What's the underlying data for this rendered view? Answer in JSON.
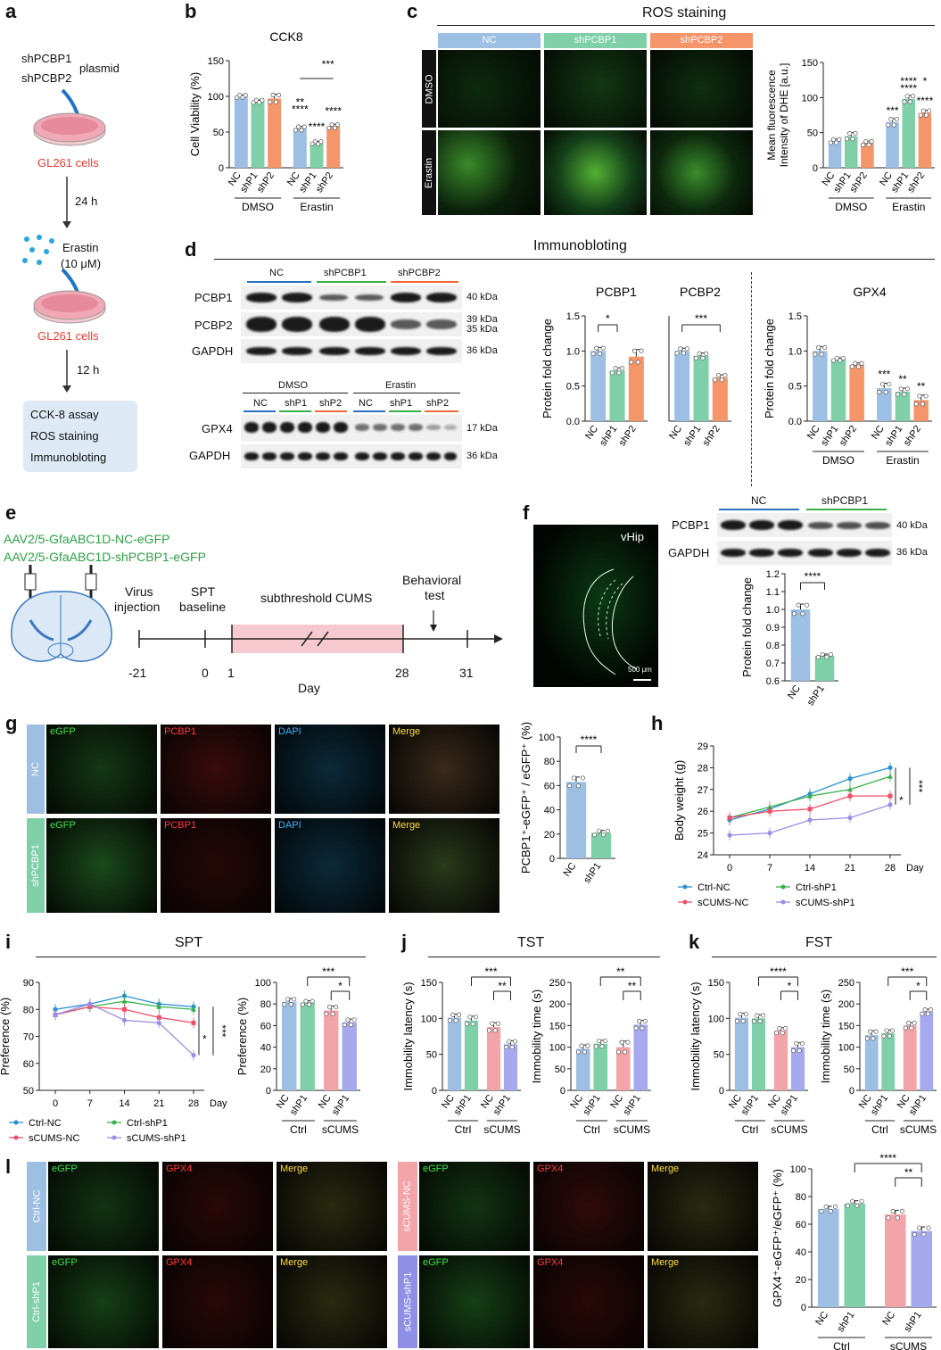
{
  "panels": {
    "a": "a",
    "b": "b",
    "c": "c",
    "d": "d",
    "e": "e",
    "f": "f",
    "g": "g",
    "h": "h",
    "i": "i",
    "j": "j",
    "k": "k",
    "l": "l"
  },
  "a": {
    "plasmid1": "shPCBP1",
    "plasmid2": "shPCBP2",
    "plasmid_label": "plasmid",
    "cells": "GL261 cells",
    "time1": "24 h",
    "drug": "Erastin",
    "dose": "(10 μM)",
    "time2": "12 h",
    "assays": [
      "CCK-8 assay",
      "ROS staining",
      "Immunobloting"
    ]
  },
  "b": {
    "title": "CCK8"
  },
  "c": {
    "title": "ROS staining",
    "cols": [
      "NC",
      "shPCBP1",
      "shPCBP2"
    ],
    "rows": [
      "DMSO",
      "Erastin"
    ]
  },
  "d": {
    "title": "Immunobloting",
    "groups": [
      "NC",
      "shPCBP1",
      "shPCBP2"
    ],
    "groups2": [
      "NC",
      "shP1",
      "shP2",
      "NC",
      "shP1",
      "shP2"
    ],
    "top_groups2": [
      "DMSO",
      "Erastin"
    ],
    "proteins": [
      "PCBP1",
      "PCBP2",
      "GAPDH",
      "GPX4",
      "GAPDH"
    ],
    "kda": [
      "40 kDa",
      "39 kDa",
      "35 kDa",
      "36 kDa",
      "17 kDa",
      "36 kDa"
    ]
  },
  "e": {
    "virus1": "AAV2/5-GfaABC1D-NC-eGFP",
    "virus2": "AAV2/5-GfaABC1D-shPCBP1-eGFP",
    "steps": [
      "Virus",
      "injection",
      "SPT",
      "baseline",
      "subthreshold CUMS",
      "Behavioral",
      "test"
    ],
    "days": [
      "-21",
      "0",
      "1",
      "28",
      "31"
    ],
    "axis": "Day"
  },
  "f": {
    "region": "vHip",
    "scalebar": "500 μm",
    "groups": [
      "NC",
      "shPCBP1"
    ],
    "proteins": [
      "PCBP1",
      "GAPDH"
    ],
    "kda": [
      "40 kDa",
      "36 kDa"
    ]
  },
  "g": {
    "cols": [
      "eGFP",
      "PCBP1",
      "DAPI",
      "Merge"
    ],
    "rows": [
      "NC",
      "shPCBP1"
    ]
  },
  "i": {
    "title": "SPT"
  },
  "j": {
    "title": "TST"
  },
  "k": {
    "title": "FST"
  },
  "l": {
    "cols": [
      "eGFP",
      "GPX4",
      "Merge"
    ],
    "rows_left": [
      "Ctrl-NC",
      "Ctrl-shP1"
    ],
    "rows_right": [
      "sCUMS-NC",
      "sCUMS-shP1"
    ]
  },
  "colors": {
    "nc": "#9dbfe3",
    "shp1": "#7fcfa8",
    "shp2": "#f4956a",
    "sc_nc": "#f3a4a9",
    "sc_shp1": "#a6a9ee",
    "ctrlnc_line": "#2a8fd0",
    "ctrlshp1_line": "#38b04a",
    "scnc_line": "#ef4f6a",
    "scshp1_line": "#9c8ce6"
  },
  "chart_data": [
    {
      "id": "b",
      "type": "bar",
      "title": "CCK8",
      "ylabel": "Cell Viability (%)",
      "ylim": [
        0,
        150
      ],
      "yticks": [
        0,
        50,
        100,
        150
      ],
      "categories": [
        "NC",
        "shP1",
        "shP2",
        "NC",
        "shP1",
        "shP2"
      ],
      "groups": [
        "DMSO",
        "Erastin"
      ],
      "values": [
        100,
        93,
        97,
        55,
        35,
        58
      ],
      "errors": [
        2,
        2,
        6,
        3,
        2,
        3
      ],
      "sig": [
        "**",
        "***",
        "****",
        "****",
        "****"
      ]
    },
    {
      "id": "c",
      "type": "bar",
      "ylabel": "Mean fluorescence Intensity of DHE [a.u.]",
      "ylim": [
        0,
        150
      ],
      "yticks": [
        0,
        50,
        100,
        150
      ],
      "categories": [
        "NC",
        "shP1",
        "shP2",
        "NC",
        "shP1",
        "shP2"
      ],
      "groups": [
        "DMSO",
        "Erastin"
      ],
      "values": [
        38,
        45,
        35,
        65,
        98,
        78
      ],
      "errors": [
        3,
        5,
        3,
        5,
        5,
        4
      ],
      "sig": [
        "****",
        "*",
        "***",
        "****",
        "****"
      ]
    },
    {
      "id": "d1",
      "type": "bar",
      "title": "PCBP1",
      "ylabel": "Protein fold change",
      "ylim": [
        0,
        1.5
      ],
      "yticks": [
        "0.0",
        "0.5",
        "1.0",
        "1.5"
      ],
      "categories": [
        "NC",
        "shP1",
        "shP2"
      ],
      "values": [
        1.0,
        0.72,
        0.92
      ],
      "errors": [
        0.05,
        0.04,
        0.1
      ],
      "sig": [
        "*"
      ]
    },
    {
      "id": "d2",
      "type": "bar",
      "title": "PCBP2",
      "ylim": [
        0,
        1.5
      ],
      "categories": [
        "NC",
        "shP1",
        "shP2"
      ],
      "values": [
        1.0,
        0.93,
        0.62
      ],
      "errors": [
        0.04,
        0.04,
        0.04
      ],
      "sig": [
        "***"
      ]
    },
    {
      "id": "d3",
      "type": "bar",
      "title": "GPX4",
      "ylabel": "Protein fold change",
      "ylim": [
        0,
        1.5
      ],
      "yticks": [
        "0.0",
        "0.5",
        "1.0",
        "1.5"
      ],
      "categories": [
        "NC",
        "shP1",
        "shP2",
        "NC",
        "shP1",
        "shP2"
      ],
      "groups": [
        "DMSO",
        "Erastin"
      ],
      "values": [
        1.0,
        0.88,
        0.8,
        0.47,
        0.42,
        0.3
      ],
      "errors": [
        0.06,
        0.02,
        0.03,
        0.07,
        0.05,
        0.07
      ],
      "sig": [
        "***",
        "**",
        "**"
      ]
    },
    {
      "id": "f",
      "type": "bar",
      "ylabel": "Protein fold change",
      "ylim": [
        0.6,
        1.2
      ],
      "yticks": [
        "0.6",
        "0.7",
        "0.8",
        "0.9",
        "1.0",
        "1.1",
        "1.2"
      ],
      "categories": [
        "NC",
        "shP1"
      ],
      "values": [
        1.0,
        0.74
      ],
      "errors": [
        0.03,
        0.01
      ],
      "sig": [
        "****"
      ]
    },
    {
      "id": "g",
      "type": "bar",
      "ylabel": "PCBP1⁺-eGFP⁺ / eGFP⁺ (%)",
      "ylim": [
        0,
        100
      ],
      "yticks": [
        "0",
        "20",
        "40",
        "60",
        "80",
        "100"
      ],
      "categories": [
        "NC",
        "shP1"
      ],
      "values": [
        63,
        21
      ],
      "errors": [
        4,
        2
      ],
      "sig": [
        "****"
      ]
    },
    {
      "id": "h",
      "type": "line",
      "ylabel": "Body weight (g)",
      "xlabel": "Day",
      "ylim": [
        24,
        29
      ],
      "yticks": [
        "24",
        "25",
        "26",
        "27",
        "28",
        "29"
      ],
      "x": [
        0,
        7,
        14,
        21,
        28
      ],
      "series": [
        {
          "name": "Ctrl-NC",
          "values": [
            25.6,
            26.1,
            26.8,
            27.5,
            28.0
          ]
        },
        {
          "name": "Ctrl-shP1",
          "values": [
            25.7,
            26.2,
            26.7,
            27.0,
            27.6
          ]
        },
        {
          "name": "sCUMS-NC",
          "values": [
            25.7,
            26.0,
            26.1,
            26.7,
            26.7
          ]
        },
        {
          "name": "sCUMS-shP1",
          "values": [
            24.9,
            25.0,
            25.6,
            25.7,
            26.3
          ]
        }
      ],
      "sig": [
        "*",
        "***"
      ]
    },
    {
      "id": "i1",
      "type": "line",
      "title": "SPT",
      "ylabel": "Preference (%)",
      "xlabel": "Day",
      "ylim": [
        50,
        90
      ],
      "yticks": [
        "50",
        "60",
        "70",
        "80",
        "90"
      ],
      "x": [
        0,
        7,
        14,
        21,
        28
      ],
      "series": [
        {
          "name": "Ctrl-NC",
          "values": [
            80,
            82,
            85,
            82,
            81
          ]
        },
        {
          "name": "Ctrl-shP1",
          "values": [
            78,
            81,
            83,
            81,
            80
          ]
        },
        {
          "name": "sCUMS-NC",
          "values": [
            78,
            81,
            80,
            77,
            75
          ]
        },
        {
          "name": "sCUMS-shP1",
          "values": [
            78,
            82,
            76,
            75,
            63
          ]
        }
      ],
      "sig": [
        "*",
        "***"
      ]
    },
    {
      "id": "i2",
      "type": "bar",
      "ylabel": "Preference (%)",
      "ylim": [
        0,
        100
      ],
      "yticks": [
        "0",
        "20",
        "40",
        "60",
        "80",
        "100"
      ],
      "categories": [
        "NC",
        "shP1",
        "NC",
        "shP1"
      ],
      "groups": [
        "Ctrl",
        "sCUMS"
      ],
      "values": [
        82,
        81,
        74,
        63
      ],
      "errors": [
        3,
        2,
        4,
        3
      ],
      "sig": [
        "***",
        "*"
      ]
    },
    {
      "id": "j1",
      "type": "bar",
      "ylabel": "Immobility latency (s)",
      "ylim": [
        0,
        150
      ],
      "yticks": [
        "0",
        "50",
        "100",
        "150"
      ],
      "categories": [
        "NC",
        "shP1",
        "NC",
        "shP1"
      ],
      "groups": [
        "Ctrl",
        "sCUMS"
      ],
      "values": [
        101,
        97,
        88,
        64
      ],
      "errors": [
        5,
        6,
        6,
        5
      ],
      "sig": [
        "***",
        "**"
      ]
    },
    {
      "id": "j2",
      "type": "bar",
      "ylabel": "Immobility time (s)",
      "ylim": [
        0,
        250
      ],
      "yticks": [
        "0",
        "50",
        "100",
        "150",
        "200",
        "250"
      ],
      "categories": [
        "NC",
        "shP1",
        "NC",
        "shP1"
      ],
      "groups": [
        "Ctrl",
        "sCUMS"
      ],
      "values": [
        96,
        108,
        100,
        152
      ],
      "errors": [
        9,
        8,
        14,
        10
      ],
      "sig": [
        "**",
        "**"
      ]
    },
    {
      "id": "k1",
      "type": "bar",
      "ylabel": "Immobility latency (s)",
      "ylim": [
        0,
        150
      ],
      "yticks": [
        "0",
        "50",
        "100",
        "150"
      ],
      "categories": [
        "NC",
        "shP1",
        "NC",
        "shP1"
      ],
      "groups": [
        "Ctrl",
        "sCUMS"
      ],
      "values": [
        101,
        100,
        83,
        60
      ],
      "errors": [
        6,
        5,
        4,
        6
      ],
      "sig": [
        "****",
        "*"
      ]
    },
    {
      "id": "k2",
      "type": "bar",
      "ylabel": "Immobility time (s)",
      "ylim": [
        0,
        250
      ],
      "yticks": [
        "0",
        "50",
        "100",
        "150",
        "200",
        "250"
      ],
      "categories": [
        "NC",
        "shP1",
        "NC",
        "shP1"
      ],
      "groups": [
        "Ctrl",
        "sCUMS"
      ],
      "values": [
        128,
        132,
        150,
        182
      ],
      "errors": [
        10,
        8,
        7,
        6
      ],
      "sig": [
        "***",
        "*"
      ]
    },
    {
      "id": "l",
      "type": "bar",
      "ylabel": "GPX4⁺-eGFP⁺/eGFP⁺ (%)",
      "ylim": [
        0,
        100
      ],
      "yticks": [
        "0",
        "20",
        "40",
        "60",
        "80",
        "100"
      ],
      "categories": [
        "NC",
        "shP1",
        "NC",
        "shP1"
      ],
      "groups": [
        "Ctrl",
        "sCUMS"
      ],
      "values": [
        71,
        75,
        67,
        55
      ],
      "errors": [
        2,
        2,
        3,
        3
      ],
      "sig": [
        "****",
        "**"
      ]
    }
  ]
}
